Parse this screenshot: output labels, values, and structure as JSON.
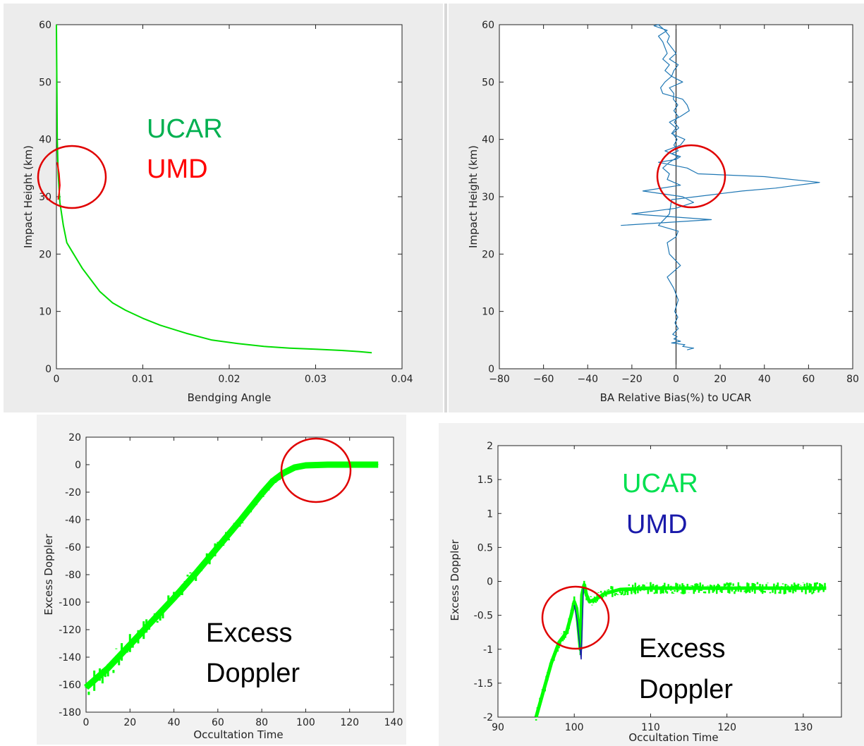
{
  "chart_data": [
    {
      "type": "line",
      "xlabel": "Bendging Angle",
      "ylabel": "Impact Height (km)",
      "xlim": [
        0,
        0.04
      ],
      "ylim": [
        0,
        60
      ],
      "xticks": [
        "0",
        "0.01",
        "0.02",
        "0.03",
        "0.04"
      ],
      "yticks": [
        "0",
        "10",
        "20",
        "30",
        "40",
        "50",
        "60"
      ],
      "annotations": [
        "UCAR",
        "UMD"
      ],
      "annotation_colors": [
        "#00b050",
        "#ff0000"
      ],
      "series": [
        {
          "name": "UCAR",
          "color": "#00dd00",
          "x": [
            0.0,
            0.0001,
            0.0002,
            0.0004,
            0.0008,
            0.0012,
            0.0018,
            0.0024,
            0.003,
            0.004,
            0.005,
            0.0065,
            0.008,
            0.01,
            0.012,
            0.015,
            0.018,
            0.021,
            0.024,
            0.027,
            0.03,
            0.033,
            0.035,
            0.0365
          ],
          "y": [
            60,
            40,
            34,
            29,
            25,
            22,
            20.5,
            19,
            17.5,
            15.5,
            13.5,
            11.5,
            10.2,
            8.8,
            7.6,
            6.2,
            5.0,
            4.4,
            3.9,
            3.6,
            3.4,
            3.2,
            3.0,
            2.8
          ]
        },
        {
          "name": "UMD",
          "color": "#ff0000",
          "x": [
            0.0001,
            0.0003,
            0.0004,
            0.0003,
            0.0002
          ],
          "y": [
            36,
            34,
            32,
            30.5,
            29.5
          ]
        }
      ]
    },
    {
      "type": "line",
      "xlabel": "BA Relative Bias(%) to UCAR",
      "ylabel": "Impact Height (km)",
      "xlim": [
        -80,
        80
      ],
      "ylim": [
        0,
        60
      ],
      "xticks": [
        "−80",
        "−60",
        "−40",
        "−20",
        "0",
        "20",
        "40",
        "60",
        "80"
      ],
      "yticks": [
        "0",
        "10",
        "20",
        "30",
        "40",
        "50",
        "60"
      ],
      "series": [
        {
          "name": "",
          "color": "#1f77b4",
          "x": [
            5,
            8,
            3,
            4,
            -2,
            2,
            -1,
            0.5,
            -1.5,
            1,
            -0.5,
            0.8,
            -0.6,
            1,
            -1,
            -4,
            2,
            -3,
            -4,
            0,
            1,
            -8,
            -3,
            -2,
            30,
            45,
            55,
            65,
            40,
            10,
            5,
            -8,
            0,
            2,
            -2,
            1,
            -1,
            0.5,
            -1.5,
            1.2,
            -0.8,
            1,
            -1,
            0.8,
            -1.2,
            -1,
            -3,
            3,
            -2,
            -5,
            -3,
            -6,
            -4,
            -5,
            -6,
            -8,
            -4,
            -10,
            -8,
            -5,
            -3,
            -4,
            -2,
            0,
            -3,
            1,
            -1,
            -2,
            -5,
            -7,
            -6,
            3,
            5,
            6,
            2,
            -3,
            0,
            -2,
            4,
            2,
            -5,
            1,
            -3,
            -6,
            -3,
            -4,
            2,
            -15,
            3,
            8,
            0,
            -20,
            16,
            -25
          ],
          "y": [
            3.3,
            3.6,
            3.9,
            4.2,
            4.5,
            4.8,
            5.2,
            5.6,
            6,
            7,
            8,
            9,
            10,
            12,
            14,
            16,
            18,
            20,
            22,
            23,
            24,
            25,
            27,
            29.5,
            31,
            31.5,
            32,
            32.5,
            33.5,
            34,
            35,
            36,
            36.5,
            37,
            37.5,
            38,
            39,
            40,
            41,
            42,
            43,
            44,
            45,
            46,
            47,
            48,
            49,
            50,
            51,
            52,
            53,
            54,
            55,
            56,
            57,
            58,
            59,
            59.8,
            60,
            59,
            58,
            57,
            56,
            55,
            54,
            53,
            52,
            51,
            50,
            49,
            48,
            47,
            46,
            45,
            44,
            43,
            42,
            41,
            40,
            39,
            38,
            37,
            36,
            35,
            34,
            33,
            32,
            31,
            30,
            29,
            28,
            27,
            26,
            25
          ]
        }
      ]
    },
    {
      "type": "scatter",
      "xlabel": "Occultation Time",
      "ylabel": "Excess Doppler",
      "xlim": [
        0,
        140
      ],
      "ylim": [
        -180,
        20
      ],
      "xticks": [
        "0",
        "20",
        "40",
        "60",
        "80",
        "100",
        "120",
        "140"
      ],
      "yticks": [
        "20",
        "0",
        "-20",
        "-40",
        "-60",
        "-80",
        "-100",
        "-120",
        "-140",
        "-160",
        "-180"
      ],
      "annotations": [
        "Excess",
        "Doppler"
      ],
      "series": [
        {
          "name": "UCAR",
          "color": "#00ff00",
          "x": [
            0,
            10,
            20,
            30,
            40,
            50,
            60,
            70,
            80,
            85,
            90,
            95,
            100,
            110,
            120,
            130,
            133
          ],
          "y": [
            -162,
            -148,
            -131,
            -114,
            -97,
            -79,
            -60,
            -41,
            -21,
            -12,
            -6,
            -2,
            -0.5,
            0,
            0,
            0,
            0
          ]
        }
      ]
    },
    {
      "type": "scatter",
      "xlabel": "Occultation Time",
      "ylabel": "Excess Doppler",
      "xlim": [
        90,
        135
      ],
      "ylim": [
        -2,
        2
      ],
      "xticks": [
        "90",
        "100",
        "110",
        "120",
        "130"
      ],
      "yticks": [
        "2",
        "1.5",
        "1",
        "0.5",
        "0",
        "-0.5",
        "-1",
        "-1.5",
        "-2"
      ],
      "annotations": [
        "UCAR",
        "UMD",
        "Excess",
        "Doppler"
      ],
      "annotation_colors": [
        "#00e050",
        "#1a1aaa",
        "#000000",
        "#000000"
      ],
      "series": [
        {
          "name": "UCAR",
          "color": "#00ff00",
          "x": [
            95,
            96,
            97,
            98,
            99,
            99.6,
            100,
            100.3,
            100.8,
            101,
            101.3,
            101.6,
            102,
            103,
            104,
            106,
            110,
            115,
            120,
            125,
            130,
            133
          ],
          "y": [
            -2,
            -1.6,
            -1.2,
            -0.9,
            -0.75,
            -0.5,
            -0.3,
            -0.4,
            -1.0,
            -0.2,
            -0.05,
            -0.2,
            -0.3,
            -0.25,
            -0.18,
            -0.12,
            -0.1,
            -0.1,
            -0.1,
            -0.1,
            -0.1,
            -0.1
          ]
        },
        {
          "name": "UMD",
          "color": "#1a1aaa",
          "x": [
            100,
            100.4,
            100.9,
            101.2
          ],
          "y": [
            -0.35,
            -0.6,
            -1.15,
            -0.1
          ]
        }
      ]
    }
  ]
}
